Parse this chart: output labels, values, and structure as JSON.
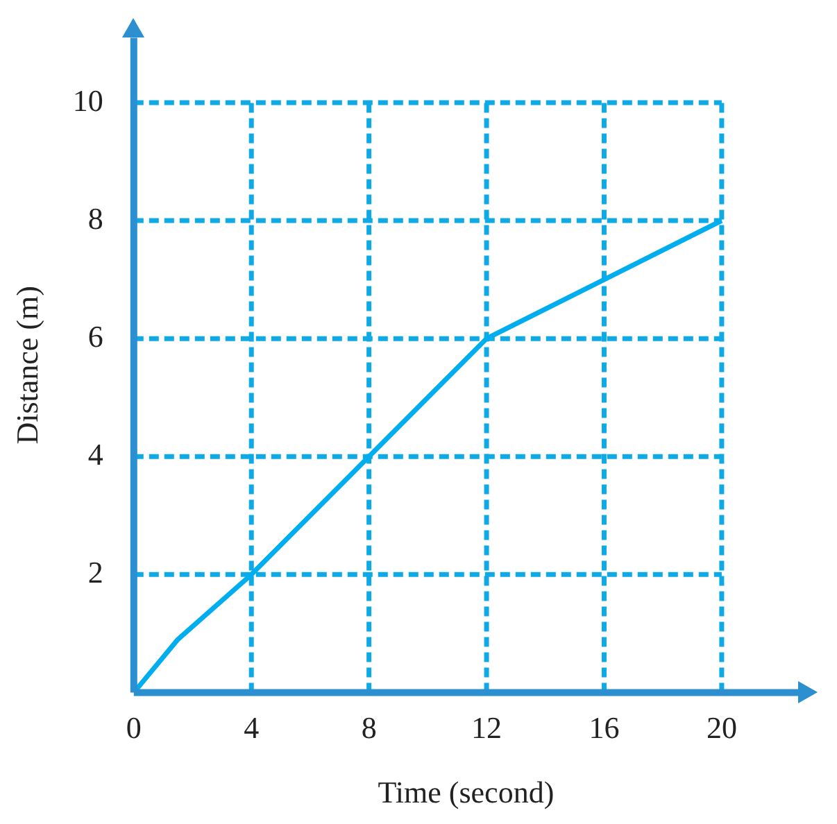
{
  "chart_data": {
    "type": "line",
    "xlabel": "Time (second)",
    "ylabel": "Distance (m)",
    "x": [
      0,
      1.5,
      4,
      8,
      12,
      16,
      20
    ],
    "series": [
      {
        "color": "#00aeef",
        "values": [
          0,
          0.9,
          2,
          4,
          6,
          7,
          8
        ]
      }
    ],
    "xlim": [
      0,
      22.6
    ],
    "ylim": [
      0,
      11.1
    ],
    "xticks": [
      0,
      4,
      8,
      12,
      16,
      20
    ],
    "yticks": [
      {
        "value": 0,
        "label": null
      },
      2,
      4,
      6,
      8,
      10
    ],
    "grid": true,
    "legend": false,
    "marker": "none",
    "line_style": "solid"
  }
}
